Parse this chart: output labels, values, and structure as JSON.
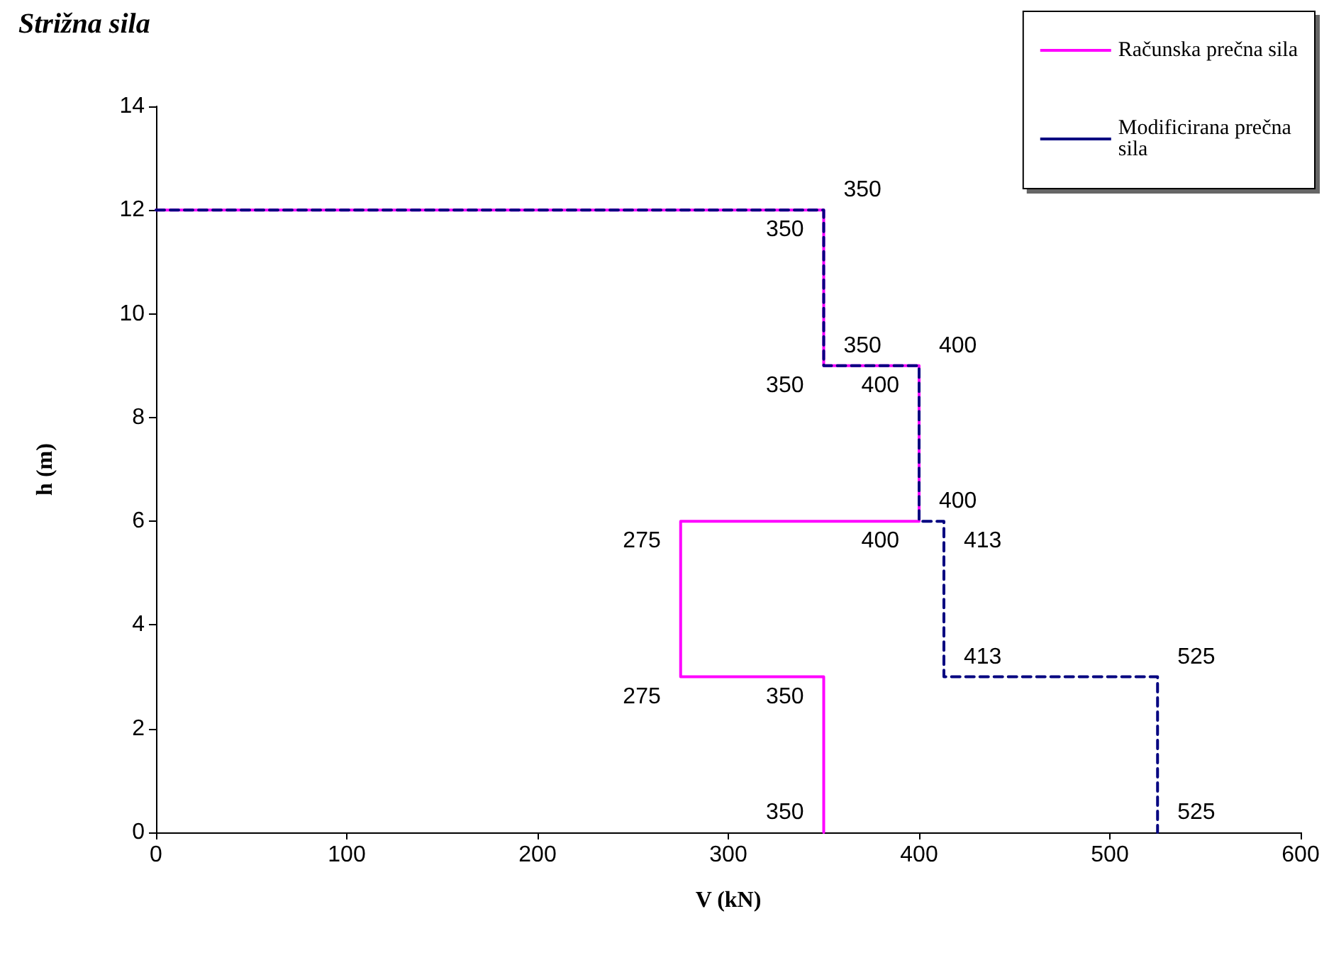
{
  "chart_data": {
    "type": "line",
    "title": "Strižna sila",
    "xlabel": "V (kN)",
    "ylabel": "h (m)",
    "xlim": [
      0,
      600
    ],
    "xticks": [
      0,
      100,
      200,
      300,
      400,
      500,
      600
    ],
    "ylim": [
      0,
      14
    ],
    "yticks": [
      0,
      2,
      4,
      6,
      8,
      10,
      12,
      14
    ],
    "grid": false,
    "legend": "top right",
    "marker": "none",
    "series": [
      {
        "name": "Računska prečna sila",
        "color": "#ff00ff",
        "line_style": "solid",
        "x": [
          0,
          350,
          350,
          400,
          400,
          275,
          275,
          350,
          350
        ],
        "values": [
          12,
          12,
          9,
          9,
          6,
          6,
          3,
          3,
          0
        ]
      },
      {
        "name": "Modificirana prečna sila",
        "color": "#000080",
        "line_style": "dashed",
        "x": [
          0,
          350,
          350,
          400,
          400,
          413,
          413,
          525,
          525
        ],
        "values": [
          12,
          12,
          9,
          9,
          6,
          6,
          3,
          3,
          0
        ]
      }
    ],
    "annotations": [
      {
        "text": "350",
        "x": 350,
        "y": 12
      },
      {
        "text": "350",
        "x": 350,
        "y": 9
      },
      {
        "text": "400",
        "x": 400,
        "y": 9
      },
      {
        "text": "400",
        "x": 400,
        "y": 6
      },
      {
        "text": "275",
        "x": 275,
        "y": 6
      },
      {
        "text": "275",
        "x": 275,
        "y": 3
      },
      {
        "text": "350",
        "x": 350,
        "y": 3
      },
      {
        "text": "350",
        "x": 350,
        "y": 0
      },
      {
        "text": "350",
        "x": 350,
        "y": 12
      },
      {
        "text": "350",
        "x": 350,
        "y": 9
      },
      {
        "text": "400",
        "x": 400,
        "y": 9
      },
      {
        "text": "400",
        "x": 400,
        "y": 6
      },
      {
        "text": "413",
        "x": 413,
        "y": 6
      },
      {
        "text": "413",
        "x": 413,
        "y": 3
      },
      {
        "text": "525",
        "x": 525,
        "y": 3
      },
      {
        "text": "525",
        "x": 525,
        "y": 0
      }
    ]
  }
}
